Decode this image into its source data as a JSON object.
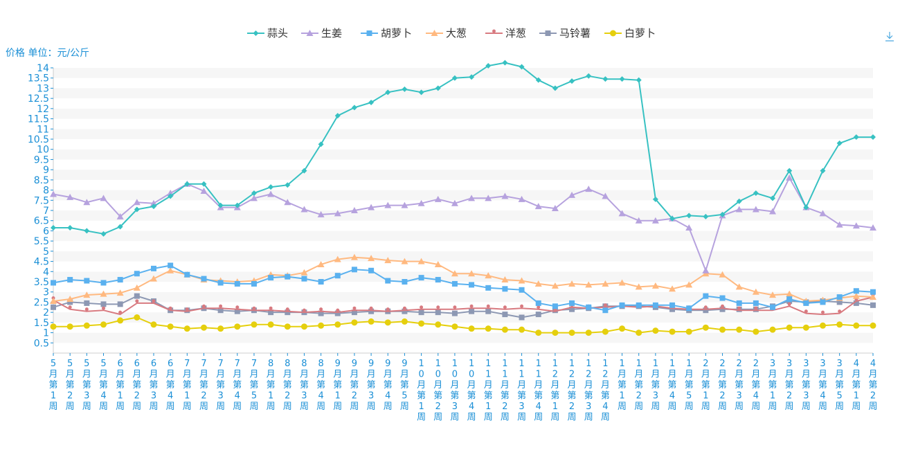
{
  "chart_data": {
    "type": "line",
    "ylabel": "价格 单位：元/公斤",
    "ylim": [
      0,
      14
    ],
    "yticks": [
      0.5,
      1,
      1.5,
      2,
      2.5,
      3,
      3.5,
      4,
      4.5,
      5,
      5.5,
      6,
      6.5,
      7,
      7.5,
      8,
      8.5,
      9,
      9.5,
      10,
      10.5,
      11,
      11.5,
      12,
      12.5,
      13,
      13.5,
      14
    ],
    "legend_position": "top-center",
    "categories": [
      "5月第1周",
      "5月第2周",
      "5月第3周",
      "5月第4周",
      "6月第1周",
      "6月第2周",
      "6月第3周",
      "6月第4周",
      "7月第1周",
      "7月第2周",
      "7月第3周",
      "7月第4周",
      "7月第5周",
      "8月第1周",
      "8月第2周",
      "8月第3周",
      "8月第4周",
      "9月第1周",
      "9月第2周",
      "9月第3周",
      "9月第4周",
      "9月第5周",
      "10月第1周",
      "10月第2周",
      "10月第3周",
      "10月第4周",
      "11月第1周",
      "11月第2周",
      "11月第3周",
      "11月第4周",
      "12月第1周",
      "12月第2周",
      "12月第3周",
      "12月第4周",
      "1月第1周",
      "1月第2周",
      "1月第3周",
      "1月第4周",
      "1月第5周",
      "2月第1周",
      "2月第2周",
      "2月第3周",
      "2月第4周",
      "3月第1周",
      "3月第2周",
      "3月第3周",
      "3月第4周",
      "3月第5周",
      "4月第1周",
      "4月第2周"
    ],
    "series": [
      {
        "name": "蒜头",
        "color": "#37c1c2",
        "marker": "diamond",
        "values": [
          6.15,
          6.15,
          6.0,
          5.85,
          6.2,
          7.05,
          7.2,
          7.7,
          8.3,
          8.3,
          7.25,
          7.25,
          7.85,
          8.15,
          8.25,
          8.95,
          10.25,
          11.65,
          12.05,
          12.3,
          12.8,
          12.95,
          12.8,
          13.0,
          13.5,
          13.55,
          14.1,
          14.25,
          14.05,
          13.4,
          13.0,
          13.35,
          13.6,
          13.45,
          13.45,
          13.4,
          7.55,
          6.6,
          6.75,
          6.7,
          6.8,
          7.45,
          7.85,
          7.6,
          8.95,
          7.15,
          8.95,
          10.3,
          10.6,
          10.6
        ]
      },
      {
        "name": "生姜",
        "color": "#b6a2de",
        "marker": "triangle",
        "values": [
          7.8,
          7.65,
          7.4,
          7.6,
          6.7,
          7.4,
          7.35,
          7.85,
          8.3,
          7.95,
          7.15,
          7.15,
          7.6,
          7.8,
          7.4,
          7.05,
          6.8,
          6.85,
          7.0,
          7.15,
          7.25,
          7.25,
          7.35,
          7.55,
          7.35,
          7.6,
          7.6,
          7.7,
          7.55,
          7.2,
          7.1,
          7.75,
          8.05,
          7.7,
          6.85,
          6.5,
          6.5,
          6.6,
          6.15,
          4.05,
          6.75,
          7.05,
          7.05,
          6.95,
          8.6,
          7.15,
          6.85,
          6.3,
          6.25,
          6.15
        ]
      },
      {
        "name": "胡萝卜",
        "color": "#5ab1ef",
        "marker": "square",
        "values": [
          3.45,
          3.6,
          3.55,
          3.45,
          3.6,
          3.9,
          4.15,
          4.3,
          3.85,
          3.65,
          3.45,
          3.4,
          3.4,
          3.7,
          3.75,
          3.65,
          3.5,
          3.8,
          4.1,
          4.05,
          3.55,
          3.5,
          3.7,
          3.6,
          3.4,
          3.35,
          3.2,
          3.15,
          3.1,
          2.45,
          2.3,
          2.45,
          2.25,
          2.1,
          2.35,
          2.35,
          2.35,
          2.35,
          2.2,
          2.8,
          2.7,
          2.45,
          2.45,
          2.25,
          2.65,
          2.45,
          2.5,
          2.75,
          3.05,
          3.0
        ]
      },
      {
        "name": "大葱",
        "color": "#ffb980",
        "marker": "triangle",
        "values": [
          2.55,
          2.65,
          2.85,
          2.9,
          2.95,
          3.2,
          3.65,
          4.05,
          3.85,
          3.6,
          3.55,
          3.5,
          3.55,
          3.85,
          3.8,
          3.95,
          4.35,
          4.6,
          4.7,
          4.65,
          4.55,
          4.5,
          4.5,
          4.35,
          3.9,
          3.9,
          3.8,
          3.6,
          3.55,
          3.4,
          3.3,
          3.4,
          3.35,
          3.4,
          3.45,
          3.25,
          3.3,
          3.15,
          3.35,
          3.9,
          3.85,
          3.25,
          3.0,
          2.85,
          2.9,
          2.55,
          2.6,
          2.7,
          2.8,
          2.75
        ]
      },
      {
        "name": "洋葱",
        "color": "#d87a80",
        "marker": "pin",
        "values": [
          2.6,
          2.15,
          2.05,
          2.1,
          1.9,
          2.45,
          2.45,
          2.1,
          2.05,
          2.2,
          2.2,
          2.15,
          2.1,
          2.1,
          2.05,
          2.0,
          2.05,
          2.0,
          2.1,
          2.1,
          2.05,
          2.1,
          2.15,
          2.15,
          2.15,
          2.2,
          2.2,
          2.15,
          2.2,
          2.15,
          2.05,
          2.25,
          2.2,
          2.25,
          2.3,
          2.25,
          2.3,
          2.2,
          2.15,
          2.15,
          2.2,
          2.1,
          2.1,
          2.1,
          2.3,
          1.95,
          1.9,
          1.95,
          2.55,
          2.75
        ]
      },
      {
        "name": "马铃薯",
        "color": "#8d98b3",
        "marker": "square",
        "values": [
          2.25,
          2.5,
          2.45,
          2.4,
          2.4,
          2.8,
          2.55,
          2.1,
          2.1,
          2.2,
          2.1,
          2.05,
          2.1,
          2.0,
          2.0,
          2.0,
          1.95,
          1.95,
          2.0,
          2.05,
          2.05,
          2.05,
          2.0,
          2.0,
          1.95,
          2.05,
          2.05,
          1.9,
          1.75,
          1.9,
          2.1,
          2.15,
          2.2,
          2.3,
          2.3,
          2.3,
          2.25,
          2.15,
          2.1,
          2.1,
          2.15,
          2.15,
          2.15,
          2.3,
          2.55,
          2.5,
          2.55,
          2.5,
          2.45,
          2.35
        ]
      },
      {
        "name": "白萝卜",
        "color": "#e5cf0d",
        "marker": "circle",
        "values": [
          1.3,
          1.3,
          1.35,
          1.4,
          1.6,
          1.75,
          1.4,
          1.3,
          1.2,
          1.25,
          1.2,
          1.3,
          1.4,
          1.4,
          1.3,
          1.3,
          1.35,
          1.4,
          1.5,
          1.55,
          1.5,
          1.55,
          1.45,
          1.4,
          1.3,
          1.2,
          1.2,
          1.15,
          1.15,
          1.0,
          1.0,
          1.0,
          1.0,
          1.05,
          1.2,
          1.0,
          1.1,
          1.05,
          1.05,
          1.25,
          1.15,
          1.15,
          1.05,
          1.15,
          1.25,
          1.25,
          1.35,
          1.4,
          1.35,
          1.35
        ]
      }
    ]
  }
}
